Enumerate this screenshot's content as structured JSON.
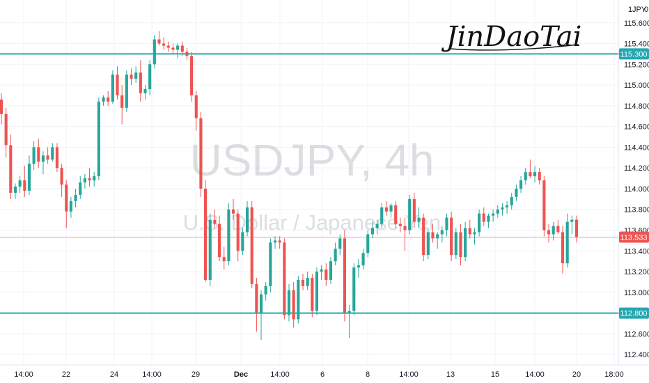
{
  "symbol_label": "USDJPY, 4h",
  "description_label": "U.S. Dollar / Japanese Yen",
  "signature": "JinDaoTai",
  "currency_badge": "JPY",
  "currency_badge_count": "0",
  "colors": {
    "up": "#26a69a",
    "down": "#ef5350",
    "level_line": "#26a6b0",
    "current_price": "#ef5350",
    "grid": "#f0f3fa"
  },
  "chart_data": {
    "type": "candlestick",
    "y_axis_ticks": [
      "115.600",
      "115.400",
      "115.200",
      "115.000",
      "114.800",
      "114.600",
      "114.400",
      "114.200",
      "114.000",
      "113.800",
      "113.600",
      "113.400",
      "113.200",
      "113.000",
      "112.800",
      "112.600",
      "112.400"
    ],
    "x_axis_ticks": [
      "14:00",
      "22",
      "24",
      "14:00",
      "29",
      "Dec",
      "14:00",
      "6",
      "8",
      "14:00",
      "13",
      "15",
      "14:00",
      "20",
      "18:00"
    ],
    "ylim": [
      112.3,
      115.82
    ],
    "grid": true,
    "horizontal_levels": [
      {
        "value": 115.3,
        "label": "115.300"
      },
      {
        "value": 112.8,
        "label": "112.800"
      }
    ],
    "current_price": {
      "value": 113.533,
      "label": "113.533"
    },
    "candles": [
      [
        114.86,
        114.92,
        114.62,
        114.72
      ],
      [
        114.72,
        114.78,
        114.3,
        114.42
      ],
      [
        114.42,
        114.52,
        113.9,
        113.96
      ],
      [
        113.96,
        114.05,
        113.9,
        114.02
      ],
      [
        114.02,
        114.12,
        113.96,
        114.08
      ],
      [
        114.08,
        114.22,
        113.92,
        113.98
      ],
      [
        113.98,
        114.32,
        113.94,
        114.24
      ],
      [
        114.24,
        114.46,
        114.18,
        114.4
      ],
      [
        114.4,
        114.48,
        114.2,
        114.26
      ],
      [
        114.26,
        114.36,
        114.14,
        114.32
      ],
      [
        114.32,
        114.4,
        114.24,
        114.28
      ],
      [
        114.28,
        114.44,
        114.26,
        114.4
      ],
      [
        114.4,
        114.44,
        114.16,
        114.2
      ],
      [
        114.2,
        114.24,
        113.92,
        114.04
      ],
      [
        114.04,
        114.08,
        113.62,
        113.78
      ],
      [
        113.78,
        113.92,
        113.72,
        113.88
      ],
      [
        113.88,
        114.0,
        113.82,
        113.94
      ],
      [
        113.94,
        114.12,
        113.9,
        114.06
      ],
      [
        114.06,
        114.14,
        114.0,
        114.1
      ],
      [
        114.1,
        114.2,
        114.02,
        114.08
      ],
      [
        114.08,
        114.16,
        114.02,
        114.12
      ],
      [
        114.12,
        114.88,
        114.08,
        114.84
      ],
      [
        114.84,
        114.9,
        114.8,
        114.88
      ],
      [
        114.88,
        114.94,
        114.8,
        114.84
      ],
      [
        114.84,
        115.14,
        114.82,
        115.1
      ],
      [
        115.1,
        115.18,
        114.86,
        114.9
      ],
      [
        114.9,
        115.0,
        114.62,
        114.78
      ],
      [
        114.78,
        115.14,
        114.74,
        115.1
      ],
      [
        115.1,
        115.16,
        115.0,
        115.06
      ],
      [
        115.06,
        115.18,
        115.02,
        115.12
      ],
      [
        115.12,
        115.24,
        114.84,
        114.92
      ],
      [
        114.92,
        115.0,
        114.86,
        114.96
      ],
      [
        114.96,
        115.24,
        114.9,
        115.2
      ],
      [
        115.2,
        115.48,
        115.16,
        115.44
      ],
      [
        115.44,
        115.52,
        115.38,
        115.4
      ],
      [
        115.4,
        115.46,
        115.34,
        115.38
      ],
      [
        115.38,
        115.42,
        115.32,
        115.36
      ],
      [
        115.36,
        115.4,
        115.3,
        115.34
      ],
      [
        115.34,
        115.4,
        115.26,
        115.38
      ],
      [
        115.38,
        115.42,
        115.28,
        115.32
      ],
      [
        115.32,
        115.36,
        115.24,
        115.28
      ],
      [
        115.28,
        115.32,
        114.84,
        114.9
      ],
      [
        114.9,
        114.94,
        114.56,
        114.68
      ],
      [
        114.68,
        114.74,
        113.92,
        114.0
      ],
      [
        114.0,
        114.08,
        113.1,
        113.12
      ],
      [
        113.12,
        113.76,
        113.06,
        113.7
      ],
      [
        113.7,
        113.8,
        113.62,
        113.66
      ],
      [
        113.66,
        113.74,
        113.3,
        113.34
      ],
      [
        113.34,
        113.44,
        113.22,
        113.3
      ],
      [
        113.3,
        113.86,
        113.26,
        113.8
      ],
      [
        113.8,
        113.9,
        113.7,
        113.76
      ],
      [
        113.76,
        113.8,
        113.3,
        113.4
      ],
      [
        113.4,
        113.62,
        113.36,
        113.58
      ],
      [
        113.58,
        113.88,
        113.54,
        113.82
      ],
      [
        113.82,
        113.88,
        113.04,
        113.08
      ],
      [
        113.08,
        113.14,
        112.62,
        112.8
      ],
      [
        112.8,
        113.02,
        112.54,
        112.98
      ],
      [
        112.98,
        113.1,
        112.92,
        113.06
      ],
      [
        113.06,
        113.52,
        113.0,
        113.48
      ],
      [
        113.48,
        113.54,
        113.42,
        113.5
      ],
      [
        113.5,
        113.54,
        113.42,
        113.48
      ],
      [
        113.48,
        113.52,
        112.74,
        112.78
      ],
      [
        112.78,
        113.08,
        112.72,
        113.02
      ],
      [
        113.02,
        113.1,
        112.66,
        112.74
      ],
      [
        112.74,
        113.16,
        112.7,
        113.12
      ],
      [
        113.12,
        113.18,
        113.02,
        113.06
      ],
      [
        113.06,
        113.2,
        113.02,
        113.14
      ],
      [
        113.14,
        113.18,
        112.76,
        112.82
      ],
      [
        112.82,
        113.24,
        112.78,
        113.2
      ],
      [
        113.2,
        113.26,
        113.12,
        113.22
      ],
      [
        113.22,
        113.28,
        113.06,
        113.12
      ],
      [
        113.12,
        113.34,
        113.08,
        113.3
      ],
      [
        113.3,
        113.48,
        113.26,
        113.42
      ],
      [
        113.42,
        113.56,
        113.36,
        113.52
      ],
      [
        113.52,
        113.6,
        112.72,
        112.8
      ],
      [
        112.8,
        112.88,
        112.56,
        112.82
      ],
      [
        112.82,
        113.28,
        112.78,
        113.24
      ],
      [
        113.24,
        113.32,
        113.14,
        113.26
      ],
      [
        113.26,
        113.42,
        113.22,
        113.38
      ],
      [
        113.38,
        113.6,
        113.34,
        113.56
      ],
      [
        113.56,
        113.68,
        113.52,
        113.62
      ],
      [
        113.62,
        113.7,
        113.56,
        113.66
      ],
      [
        113.66,
        113.86,
        113.62,
        113.82
      ],
      [
        113.82,
        113.88,
        113.74,
        113.78
      ],
      [
        113.78,
        113.86,
        113.72,
        113.84
      ],
      [
        113.84,
        113.88,
        113.62,
        113.66
      ],
      [
        113.66,
        113.72,
        113.58,
        113.64
      ],
      [
        113.64,
        113.72,
        113.4,
        113.6
      ],
      [
        113.6,
        113.94,
        113.56,
        113.9
      ],
      [
        113.9,
        113.96,
        113.62,
        113.68
      ],
      [
        113.68,
        113.82,
        113.62,
        113.72
      ],
      [
        113.72,
        113.76,
        113.3,
        113.36
      ],
      [
        113.36,
        113.62,
        113.32,
        113.58
      ],
      [
        113.58,
        113.66,
        113.48,
        113.52
      ],
      [
        113.52,
        113.58,
        113.42,
        113.56
      ],
      [
        113.56,
        113.64,
        113.48,
        113.6
      ],
      [
        113.6,
        113.76,
        113.54,
        113.72
      ],
      [
        113.72,
        113.78,
        113.3,
        113.36
      ],
      [
        113.36,
        113.62,
        113.32,
        113.58
      ],
      [
        113.58,
        113.66,
        113.26,
        113.34
      ],
      [
        113.34,
        113.68,
        113.3,
        113.62
      ],
      [
        113.62,
        113.7,
        113.52,
        113.56
      ],
      [
        113.56,
        113.62,
        113.46,
        113.58
      ],
      [
        113.58,
        113.8,
        113.54,
        113.76
      ],
      [
        113.76,
        113.82,
        113.64,
        113.68
      ],
      [
        113.68,
        113.76,
        113.62,
        113.74
      ],
      [
        113.74,
        113.8,
        113.68,
        113.76
      ],
      [
        113.76,
        113.84,
        113.72,
        113.8
      ],
      [
        113.8,
        113.86,
        113.74,
        113.82
      ],
      [
        113.82,
        113.88,
        113.76,
        113.84
      ],
      [
        113.84,
        113.96,
        113.8,
        113.92
      ],
      [
        113.92,
        114.04,
        113.88,
        114.0
      ],
      [
        114.0,
        114.12,
        113.96,
        114.08
      ],
      [
        114.08,
        114.2,
        114.04,
        114.16
      ],
      [
        114.16,
        114.28,
        114.1,
        114.12
      ],
      [
        114.12,
        114.22,
        114.06,
        114.16
      ],
      [
        114.16,
        114.2,
        114.04,
        114.08
      ],
      [
        114.08,
        114.12,
        113.54,
        113.6
      ],
      [
        113.6,
        113.66,
        113.48,
        113.56
      ],
      [
        113.56,
        113.68,
        113.5,
        113.64
      ],
      [
        113.64,
        113.7,
        113.56,
        113.58
      ],
      [
        113.58,
        113.64,
        113.18,
        113.28
      ],
      [
        113.28,
        113.76,
        113.24,
        113.68
      ],
      [
        113.68,
        113.74,
        113.56,
        113.7
      ],
      [
        113.7,
        113.74,
        113.48,
        113.533
      ]
    ]
  }
}
